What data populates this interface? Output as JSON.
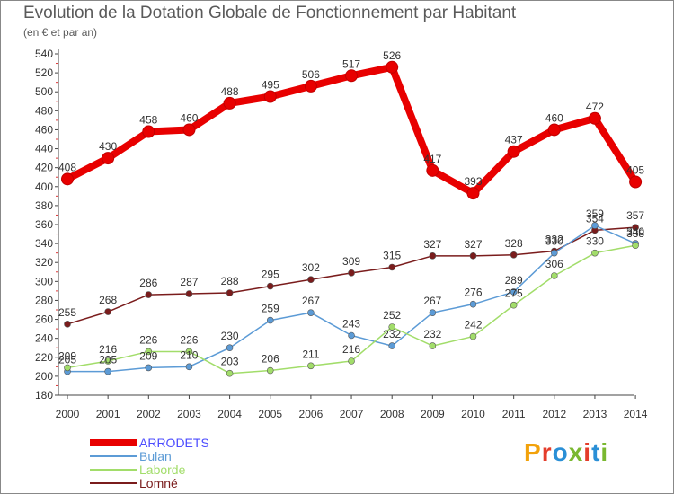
{
  "title": "Evolution de la Dotation Globale de Fonctionnement par Habitant",
  "subtitle": "(en € et par an)",
  "logo": {
    "text": "Proxiti",
    "colors": [
      "#f2a20b",
      "#e43c2b",
      "#2a8fd6",
      "#7ab830",
      "#e43c2b",
      "#2a8fd6",
      "#7ab830"
    ]
  },
  "chart_data": {
    "type": "line",
    "title": "Evolution de la Dotation Globale de Fonctionnement par Habitant",
    "subtitle": "(en € et par an)",
    "x": [
      "2000",
      "2001",
      "2002",
      "2003",
      "2004",
      "2005",
      "2006",
      "2007",
      "2008",
      "2009",
      "2010",
      "2011",
      "2012",
      "2013",
      "2014"
    ],
    "ylim": [
      180,
      540
    ],
    "yticks": [
      180,
      200,
      220,
      240,
      260,
      280,
      300,
      320,
      340,
      360,
      380,
      400,
      420,
      440,
      460,
      480,
      500,
      520,
      540
    ],
    "grid": false,
    "legend": "bottom-left",
    "series": [
      {
        "name": "ARRODETS",
        "color": "#e80000",
        "legend_color": "#4c4cff",
        "values": [
          408,
          430,
          458,
          460,
          488,
          495,
          506,
          517,
          526,
          417,
          393,
          437,
          460,
          472,
          405
        ]
      },
      {
        "name": "Bulan",
        "color": "#5c9bd6",
        "legend_color": "#5c9bd6",
        "values": [
          205,
          205,
          209,
          210,
          230,
          259,
          267,
          243,
          232,
          267,
          276,
          289,
          330,
          359,
          340
        ]
      },
      {
        "name": "Laborde",
        "color": "#a2dd6a",
        "legend_color": "#a2dd6a",
        "values": [
          209,
          216,
          226,
          226,
          203,
          206,
          211,
          216,
          252,
          232,
          242,
          275,
          306,
          330,
          338
        ]
      },
      {
        "name": "Lomné",
        "color": "#7a1c1c",
        "legend_color": "#7a1c1c",
        "values": [
          255,
          268,
          286,
          287,
          288,
          295,
          302,
          309,
          315,
          327,
          327,
          328,
          332,
          354,
          357
        ]
      }
    ]
  }
}
